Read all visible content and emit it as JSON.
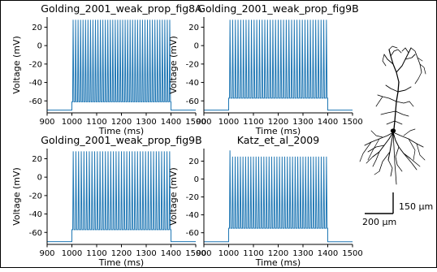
{
  "figure": {
    "scale_bar": {
      "vertical_label": "150 µm",
      "horizontal_label": "200 µm"
    }
  },
  "chart_data": [
    {
      "type": "line",
      "title": "Golding_2001_weak_prop_fig8A",
      "xlabel": "Time (ms)",
      "ylabel": "Voltage (mV)",
      "xlim": [
        900,
        1500
      ],
      "ylim": [
        -73,
        31
      ],
      "xticks": [
        900,
        1000,
        1100,
        1200,
        1300,
        1400,
        1500
      ],
      "yticks": [
        20,
        0,
        -20,
        -40,
        -60
      ],
      "series": [
        {
          "color": "#1f77b4",
          "resting_mV": -70,
          "stim_start_ms": 1000,
          "stim_end_ms": 1400,
          "plateau_mV": -61,
          "trough_mV": -61,
          "spike_peak_mV": 28,
          "spike_count": 40,
          "first_spike_peak_mV": 28
        }
      ]
    },
    {
      "type": "line",
      "title": "Golding_2001_weak_prop_fig9B",
      "xlabel": "Time (ms)",
      "ylabel": "Voltage (mV)",
      "xlim": [
        900,
        1500
      ],
      "ylim": [
        -73,
        31
      ],
      "xticks": [
        900,
        1000,
        1100,
        1200,
        1300,
        1400,
        1500
      ],
      "yticks": [
        20,
        0,
        -20,
        -40,
        -60
      ],
      "series": [
        {
          "color": "#1f77b4",
          "resting_mV": -70,
          "stim_start_ms": 1000,
          "stim_end_ms": 1400,
          "plateau_mV": -57,
          "trough_mV": -57,
          "spike_peak_mV": 28,
          "spike_count": 37,
          "first_spike_peak_mV": 28
        }
      ]
    },
    {
      "type": "line",
      "title": "Golding_2001_weak_prop_fig9B",
      "xlabel": "Time (ms)",
      "ylabel": "Voltage (mV)",
      "xlim": [
        900,
        1500
      ],
      "ylim": [
        -73,
        31
      ],
      "xticks": [
        900,
        1000,
        1100,
        1200,
        1300,
        1400,
        1500
      ],
      "yticks": [
        20,
        0,
        -20,
        -40,
        -60
      ],
      "series": [
        {
          "color": "#1f77b4",
          "resting_mV": -70,
          "stim_start_ms": 1000,
          "stim_end_ms": 1400,
          "plateau_mV": -57,
          "trough_mV": -57,
          "spike_peak_mV": 28,
          "spike_count": 37,
          "first_spike_peak_mV": 28
        }
      ]
    },
    {
      "type": "line",
      "title": "Katz_et_al_2009",
      "xlabel": "Time (ms)",
      "ylabel": "Voltage (mV)",
      "xlim": [
        900,
        1500
      ],
      "ylim": [
        -73,
        34
      ],
      "xticks": [
        900,
        1000,
        1100,
        1200,
        1300,
        1400,
        1500
      ],
      "yticks": [
        20,
        0,
        -20,
        -40,
        -60
      ],
      "series": [
        {
          "color": "#1f77b4",
          "resting_mV": -70,
          "stim_start_ms": 1000,
          "stim_end_ms": 1400,
          "plateau_mV": -55,
          "trough_mV": -55,
          "spike_peak_mV": 25,
          "spike_count": 38,
          "first_spike_peak_mV": 32
        }
      ]
    }
  ]
}
